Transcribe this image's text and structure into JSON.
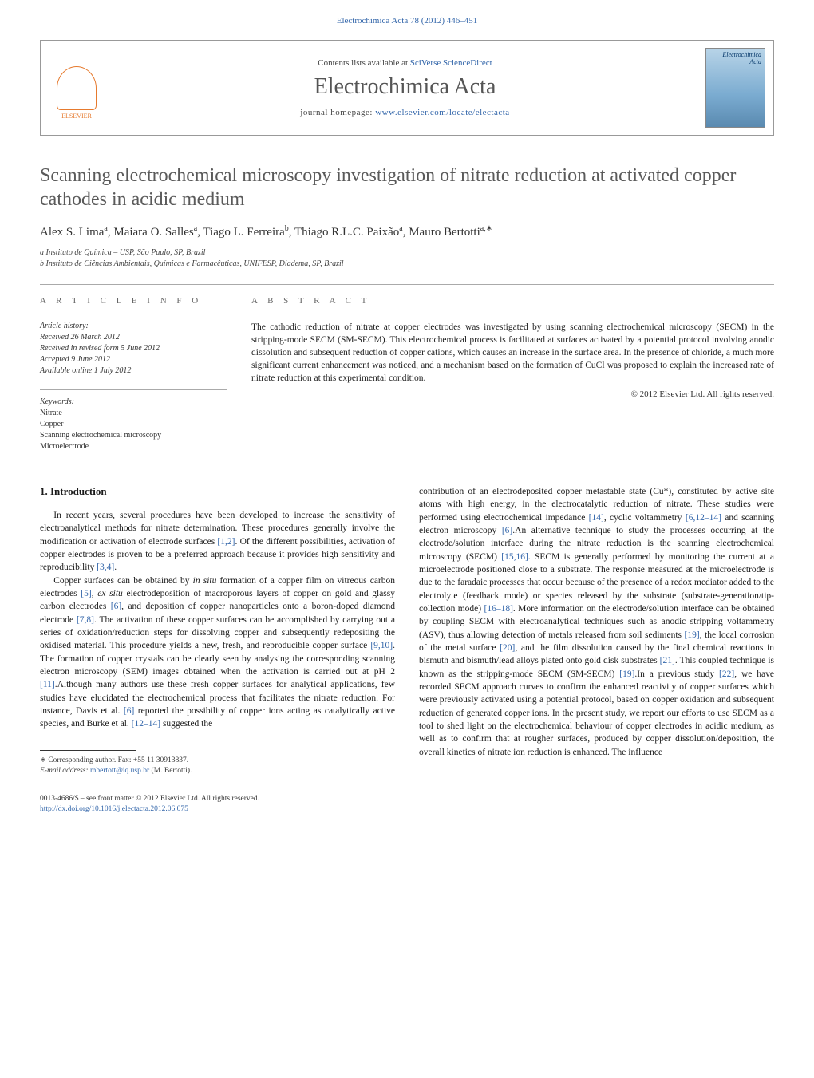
{
  "header": {
    "journal_ref": "Electrochimica Acta 78 (2012) 446–451",
    "contents_prefix": "Contents lists available at ",
    "contents_link": "SciVerse ScienceDirect",
    "journal_title": "Electrochimica Acta",
    "homepage_prefix": "journal homepage: ",
    "homepage_link": "www.elsevier.com/locate/electacta",
    "publisher_logo_label": "ELSEVIER",
    "cover_title_line1": "Electrochimica",
    "cover_title_line2": "Acta"
  },
  "article": {
    "title": "Scanning electrochemical microscopy investigation of nitrate reduction at activated copper cathodes in acidic medium",
    "authors_html": "Alex S. Lima<sup>a</sup>, Maiara O. Salles<sup>a</sup>, Tiago L. Ferreira<sup>b</sup>, Thiago R.L.C. Paixão<sup>a</sup>, Mauro Bertotti<sup>a,∗</sup>",
    "affiliations": [
      "a Instituto de Química – USP, São Paulo, SP, Brazil",
      "b Instituto de Ciências Ambientais, Químicas e Farmacêuticas, UNIFESP, Diadema, SP, Brazil"
    ]
  },
  "info": {
    "section_label": "A R T I C L E   I N F O",
    "history_label": "Article history:",
    "history": [
      "Received 26 March 2012",
      "Received in revised form 5 June 2012",
      "Accepted 9 June 2012",
      "Available online 1 July 2012"
    ],
    "keywords_label": "Keywords:",
    "keywords": [
      "Nitrate",
      "Copper",
      "Scanning electrochemical microscopy",
      "Microelectrode"
    ]
  },
  "abstract": {
    "section_label": "A B S T R A C T",
    "text": "The cathodic reduction of nitrate at copper electrodes was investigated by using scanning electrochemical microscopy (SECM) in the stripping-mode SECM (SM-SECM). This electrochemical process is facilitated at surfaces activated by a potential protocol involving anodic dissolution and subsequent reduction of copper cations, which causes an increase in the surface area. In the presence of chloride, a much more significant current enhancement was noticed, and a mechanism based on the formation of CuCl was proposed to explain the increased rate of nitrate reduction at this experimental condition.",
    "copyright": "© 2012 Elsevier Ltd. All rights reserved."
  },
  "body": {
    "heading": "1.  Introduction",
    "col1_p1": "In recent years, several procedures have been developed to increase the sensitivity of electroanalytical methods for nitrate determination. These procedures generally involve the modification or activation of electrode surfaces [1,2]. Of the different possibilities, activation of copper electrodes is proven to be a preferred approach because it provides high sensitivity and reproducibility [3,4].",
    "col1_p2": "Copper surfaces can be obtained by in situ formation of a copper film on vitreous carbon electrodes [5], ex situ electrodeposition of macroporous layers of copper on gold and glassy carbon electrodes [6], and deposition of copper nanoparticles onto a boron-doped diamond electrode [7,8]. The activation of these copper surfaces can be accomplished by carrying out a series of oxidation/reduction steps for dissolving copper and subsequently redepositing the oxidised material. This procedure yields a new, fresh, and reproducible copper surface [9,10]. The formation of copper crystals can be clearly seen by analysing the corresponding scanning electron microscopy (SEM) images obtained when the activation is carried out at pH 2 [11].Although many authors use these fresh copper surfaces for analytical applications, few studies have elucidated the electrochemical process that facilitates the nitrate reduction. For instance, Davis et al. [6] reported the possibility of copper ions acting as catalytically active species, and Burke et al. [12–14] suggested the",
    "col2_p1": "contribution of an electrodeposited copper metastable state (Cu*), constituted by active site atoms with high energy, in the electrocatalytic reduction of nitrate. These studies were performed using electrochemical impedance [14], cyclic voltammetry [6,12–14] and scanning electron microscopy [6].An alternative technique to study the processes occurring at the electrode/solution interface during the nitrate reduction is the scanning electrochemical microscopy (SECM) [15,16]. SECM is generally performed by monitoring the current at a microelectrode positioned close to a substrate. The response measured at the microelectrode is due to the faradaic processes that occur because of the presence of a redox mediator added to the electrolyte (feedback mode) or species released by the substrate (substrate-generation/tip-collection mode) [16–18]. More information on the electrode/solution interface can be obtained by coupling SECM with electroanalytical techniques such as anodic stripping voltammetry (ASV), thus allowing detection of metals released from soil sediments [19], the local corrosion of the metal surface [20], and the film dissolution caused by the final chemical reactions in bismuth and bismuth/lead alloys plated onto gold disk substrates [21]. This coupled technique is known as the stripping-mode SECM (SM-SECM) [19].In a previous study [22], we have recorded SECM approach curves to confirm the enhanced reactivity of copper surfaces which were previously activated using a potential protocol, based on copper oxidation and subsequent reduction of generated copper ions. In the present study, we report our efforts to use SECM as a tool to shed light on the electrochemical behaviour of copper electrodes in acidic medium, as well as to confirm that at rougher surfaces, produced by copper dissolution/deposition, the overall kinetics of nitrate ion reduction is enhanced. The influence"
  },
  "footnote": {
    "corr_label": "∗ Corresponding author. Fax: +55 11 30913837.",
    "email_label": "E-mail address: ",
    "email": "mbertott@iq.usp.br",
    "email_suffix": " (M. Bertotti)."
  },
  "bottom": {
    "issn_line": "0013-4686/$ – see front matter © 2012 Elsevier Ltd. All rights reserved.",
    "doi_link": "http://dx.doi.org/10.1016/j.electacta.2012.06.075"
  },
  "colors": {
    "link": "#3366aa",
    "text": "#1a1a1a",
    "heading_gray": "#5a5a5a",
    "elsevier_orange": "#e67a2e"
  }
}
